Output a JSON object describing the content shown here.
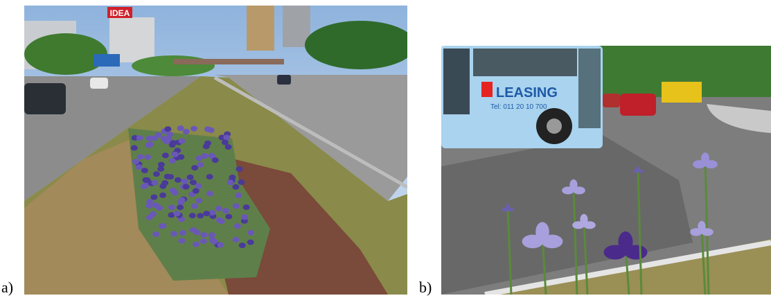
{
  "figure": {
    "panels": [
      {
        "label": "a)",
        "signs": [
          "IDEA"
        ]
      },
      {
        "label": "b)",
        "signs": [
          "LEASING",
          "Tel: 011 20 10 700"
        ]
      }
    ]
  }
}
